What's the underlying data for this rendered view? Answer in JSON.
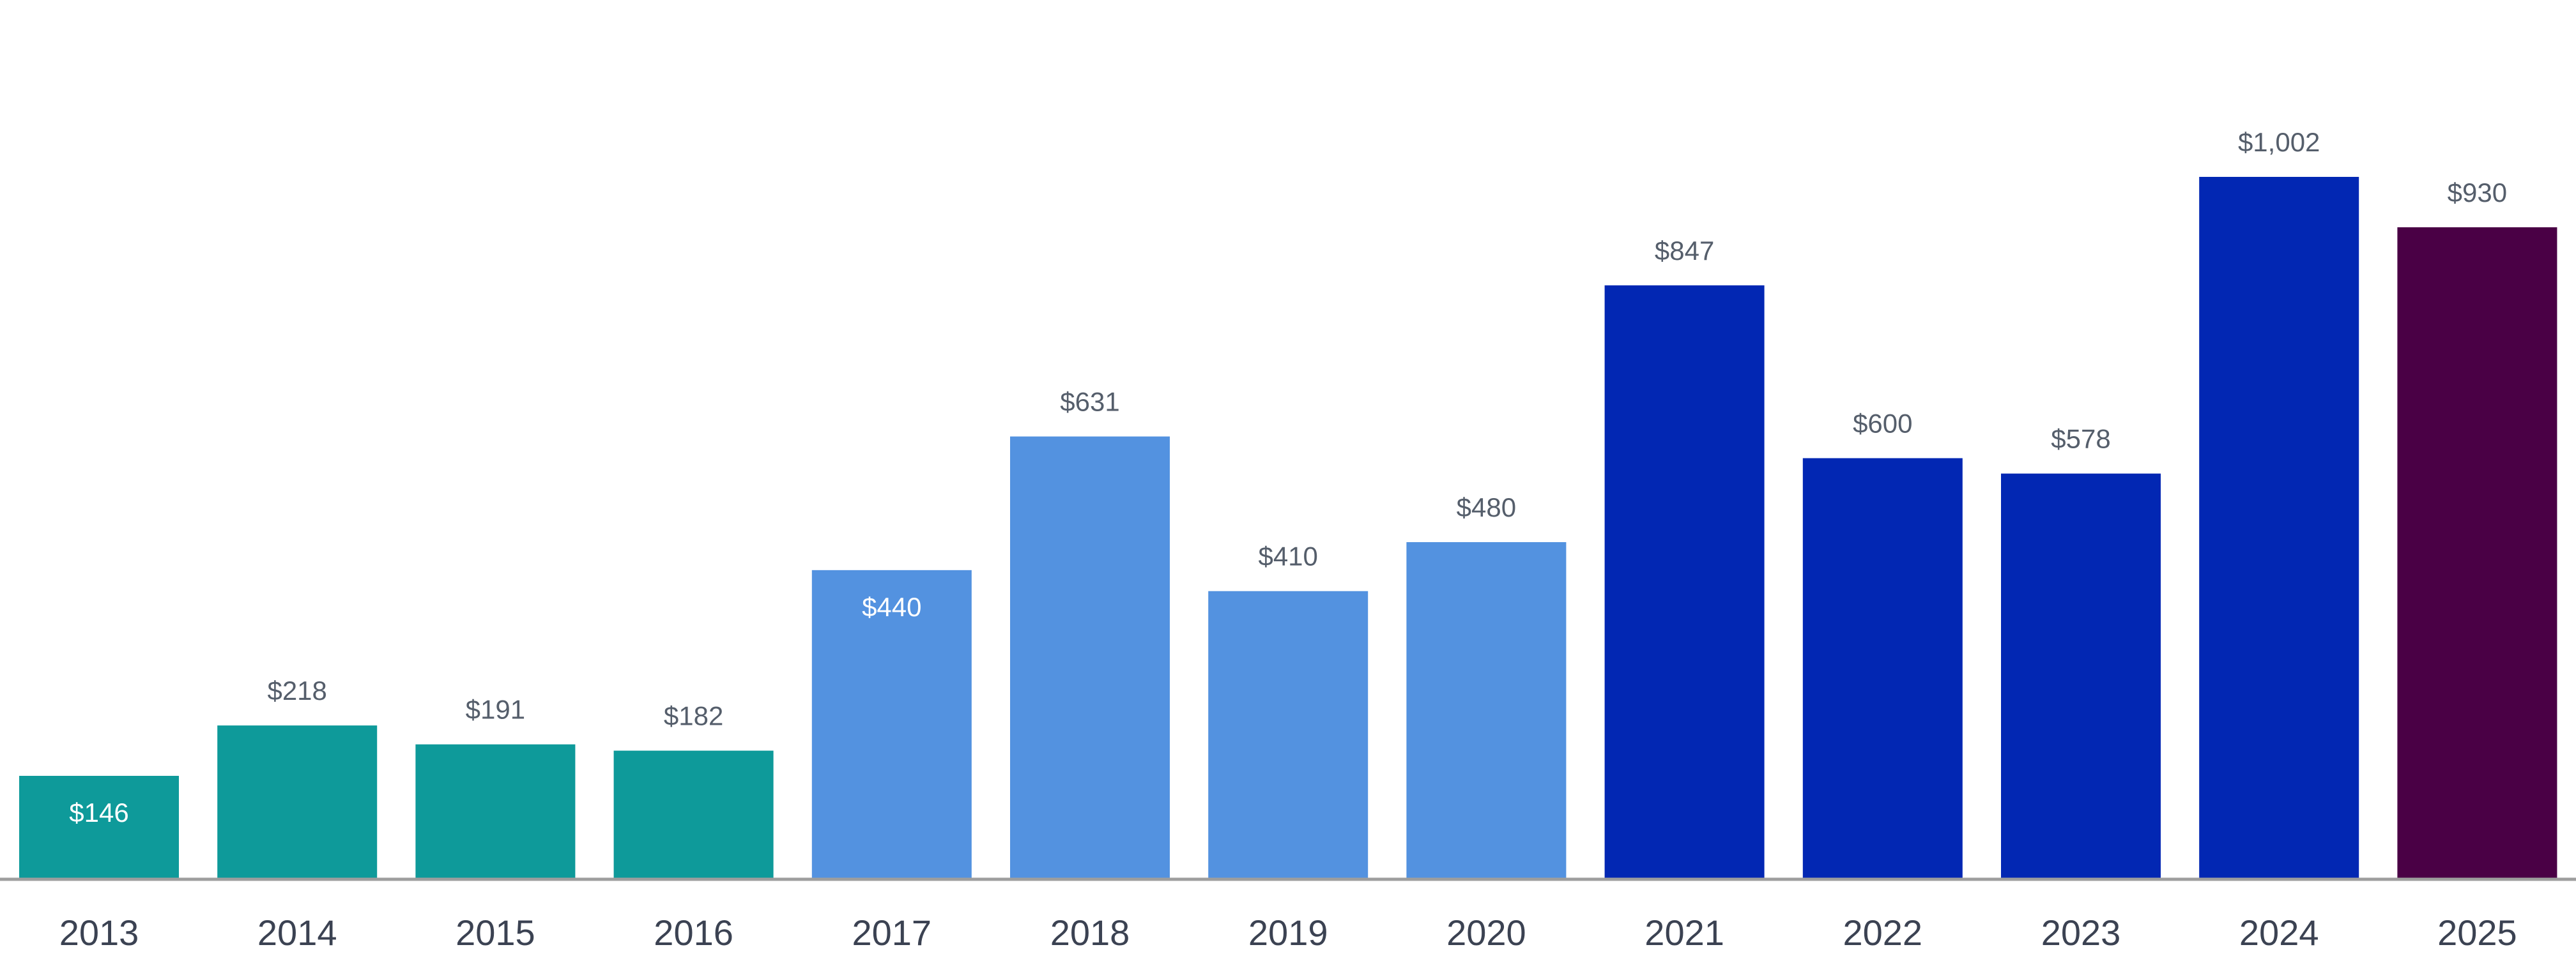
{
  "chart_data": {
    "type": "bar",
    "categories": [
      "2013",
      "2014",
      "2015",
      "2016",
      "2017",
      "2018",
      "2019",
      "2020",
      "2021",
      "2022",
      "2023",
      "2024",
      "2025"
    ],
    "values": [
      146,
      218,
      191,
      182,
      440,
      631,
      410,
      480,
      847,
      600,
      578,
      1002,
      930
    ],
    "value_labels": [
      "$146",
      "$218",
      "$191",
      "$182",
      "$440",
      "$631",
      "$410",
      "$480",
      "$847",
      "$600",
      "$578",
      "$1,002",
      "$930"
    ],
    "label_inside": [
      true,
      false,
      false,
      false,
      true,
      false,
      false,
      false,
      false,
      false,
      false,
      false,
      false
    ],
    "bar_colors": [
      "#0e9a9a",
      "#0e9a9a",
      "#0e9a9a",
      "#0e9a9a",
      "#5392e0",
      "#5392e0",
      "#5392e0",
      "#5392e0",
      "#0227b3",
      "#0227b3",
      "#0227b3",
      "#0227b3",
      "#4a0045"
    ],
    "title": "",
    "xlabel": "",
    "ylabel": "",
    "ylim": [
      0,
      1200
    ],
    "grid": false,
    "legend": "none",
    "baseline_color": "#9e9e9e",
    "outside_label_color": "#555e6b",
    "inside_label_color": "#ffffff"
  }
}
